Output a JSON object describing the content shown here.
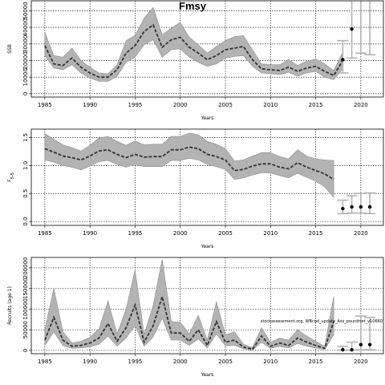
{
  "page_title": "Fmsy",
  "colors": {
    "band": "#b3b3b3",
    "band_edge": "#8c8c8c",
    "line": "#333333",
    "proj": "#b3b3b3",
    "point": "#000000"
  },
  "chart_data": [
    {
      "type": "line",
      "title": "Fmsy",
      "xlabel": "Years",
      "ylabel": "SSB",
      "xlim": [
        1983.5,
        2022.5
      ],
      "ylim": [
        -2000,
        56000
      ],
      "x_ticks": [
        1985,
        1990,
        1995,
        2000,
        2005,
        2010,
        2015,
        2020
      ],
      "y_ticks": [
        0,
        10000,
        20000,
        30000,
        40000,
        50000
      ],
      "grid": true,
      "years": [
        1985,
        1986,
        1987,
        1988,
        1989,
        1990,
        1991,
        1992,
        1993,
        1994,
        1995,
        1996,
        1997,
        1998,
        1999,
        2000,
        2001,
        2002,
        2003,
        2004,
        2005,
        2006,
        2007,
        2008,
        2009,
        2010,
        2011,
        2012,
        2013,
        2014,
        2015,
        2016,
        2017,
        2018
      ],
      "estimate": [
        29000,
        18000,
        17000,
        21500,
        16000,
        12500,
        10000,
        10000,
        14500,
        24500,
        29000,
        37500,
        41500,
        28000,
        32500,
        34000,
        28000,
        24500,
        20500,
        23000,
        26500,
        27500,
        28500,
        20500,
        15000,
        14500,
        14000,
        16000,
        13500,
        15500,
        16500,
        13500,
        11000,
        20000
      ],
      "upper": [
        37000,
        23000,
        22000,
        27500,
        20000,
        16000,
        12500,
        12000,
        17500,
        32000,
        35000,
        45500,
        52000,
        35500,
        39500,
        43000,
        34000,
        29500,
        24500,
        28500,
        32000,
        34500,
        35000,
        26500,
        18000,
        17500,
        17500,
        20500,
        17000,
        19500,
        21000,
        18000,
        14000,
        25000
      ],
      "lower": [
        23000,
        15500,
        14500,
        17500,
        12500,
        9500,
        7500,
        7500,
        10500,
        19000,
        22000,
        29500,
        32500,
        22000,
        26500,
        27000,
        22000,
        19000,
        16500,
        18000,
        21500,
        22500,
        23000,
        16500,
        12500,
        12000,
        11500,
        13000,
        10500,
        12500,
        13500,
        10000,
        8500,
        15000
      ],
      "projection": {
        "years": [
          2018,
          2019,
          2020,
          2021
        ],
        "median": [
          20500,
          39000,
          56000,
          56000
        ],
        "low": [
          12500,
          21500,
          24500,
          23500
        ],
        "high": [
          32000,
          56000,
          56000,
          56000
        ]
      }
    },
    {
      "type": "line",
      "xlabel": "Years",
      "ylabel": "F5-5",
      "xlim": [
        1983.5,
        2022.5
      ],
      "ylim": [
        -0.07,
        1.65
      ],
      "x_ticks": [
        1985,
        1990,
        1995,
        2000,
        2005,
        2010,
        2015,
        2020
      ],
      "y_ticks": [
        0.0,
        0.5,
        1.0,
        1.5
      ],
      "grid": true,
      "years": [
        1985,
        1986,
        1987,
        1988,
        1989,
        1990,
        1991,
        1992,
        1993,
        1994,
        1995,
        1996,
        1997,
        1998,
        1999,
        2000,
        2001,
        2002,
        2003,
        2004,
        2005,
        2006,
        2007,
        2008,
        2009,
        2010,
        2011,
        2012,
        2013,
        2014,
        2015,
        2016,
        2017
      ],
      "estimate": [
        1.3,
        1.24,
        1.17,
        1.14,
        1.1,
        1.17,
        1.26,
        1.28,
        1.2,
        1.14,
        1.2,
        1.15,
        1.16,
        1.16,
        1.28,
        1.28,
        1.33,
        1.3,
        1.2,
        1.16,
        1.1,
        0.91,
        0.93,
        0.99,
        1.03,
        1.03,
        0.97,
        0.94,
        1.05,
        0.97,
        0.91,
        0.85,
        0.75
      ],
      "upper": [
        1.57,
        1.47,
        1.37,
        1.32,
        1.26,
        1.36,
        1.49,
        1.52,
        1.43,
        1.36,
        1.44,
        1.37,
        1.38,
        1.38,
        1.52,
        1.52,
        1.58,
        1.55,
        1.43,
        1.38,
        1.3,
        1.08,
        1.1,
        1.17,
        1.23,
        1.23,
        1.16,
        1.12,
        1.28,
        1.17,
        1.12,
        1.1,
        1.09
      ],
      "lower": [
        1.1,
        1.06,
        1.0,
        0.97,
        0.92,
        0.99,
        1.07,
        1.09,
        1.02,
        0.97,
        1.02,
        0.98,
        0.98,
        0.98,
        1.09,
        1.09,
        1.13,
        1.1,
        1.02,
        0.98,
        0.93,
        0.75,
        0.78,
        0.83,
        0.87,
        0.87,
        0.82,
        0.78,
        0.86,
        0.79,
        0.72,
        0.62,
        0.43
      ],
      "projection": {
        "years": [
          2018,
          2019,
          2020,
          2021
        ],
        "median": [
          0.23,
          0.26,
          0.26,
          0.26
        ],
        "low": [
          0.14,
          0.15,
          0.15,
          0.14
        ],
        "high": [
          0.38,
          0.46,
          0.5,
          0.51
        ]
      }
    },
    {
      "type": "line",
      "xlabel": "Years",
      "ylabel": "Recruits (age 1)",
      "xlim": [
        1983.5,
        2022.5
      ],
      "ylim": [
        -8000,
        225000
      ],
      "x_ticks": [
        1985,
        1990,
        1995,
        2000,
        2005,
        2010,
        2015,
        2020
      ],
      "y_ticks": [
        0,
        50000,
        100000,
        150000,
        200000
      ],
      "grid": true,
      "annotation": "stockassessment.org, WBcod_update_Ass_poundnet_v10660",
      "years": [
        1985,
        1986,
        1987,
        1988,
        1989,
        1990,
        1991,
        1992,
        1993,
        1994,
        1995,
        1996,
        1997,
        1998,
        1999,
        2000,
        2001,
        2002,
        2003,
        2004,
        2005,
        2006,
        2007,
        2008,
        2009,
        2010,
        2011,
        2012,
        2013,
        2014,
        2015,
        2016,
        2017
      ],
      "estimate": [
        25000,
        80000,
        25000,
        10000,
        12000,
        18000,
        30000,
        65000,
        22000,
        55000,
        110000,
        20000,
        60000,
        130000,
        42000,
        42000,
        22000,
        50000,
        12000,
        70000,
        20000,
        25000,
        8000,
        3000,
        35000,
        10000,
        18000,
        12000,
        30000,
        20000,
        12000,
        5000,
        70000
      ],
      "upper": [
        50000,
        150000,
        45000,
        18000,
        22000,
        32000,
        52000,
        120000,
        40000,
        100000,
        195000,
        38000,
        110000,
        220000,
        70000,
        68000,
        40000,
        85000,
        25000,
        118000,
        38000,
        45000,
        15000,
        7000,
        55000,
        20000,
        30000,
        25000,
        50000,
        35000,
        22000,
        10000,
        130000
      ],
      "lower": [
        12000,
        45000,
        12000,
        5000,
        6000,
        9000,
        15000,
        35000,
        10000,
        30000,
        60000,
        10000,
        33000,
        78000,
        25000,
        25000,
        12000,
        28000,
        6000,
        40000,
        11000,
        13000,
        4000,
        1000,
        20000,
        5000,
        10000,
        6000,
        17000,
        10000,
        6000,
        2000,
        38000
      ],
      "projection": {
        "years": [
          2018,
          2019,
          2020,
          2021
        ],
        "median": [
          1500,
          1500,
          14000,
          14000
        ],
        "low": [
          500,
          500,
          1500,
          1500
        ],
        "high": [
          10000,
          20000,
          83000,
          80000
        ]
      }
    }
  ]
}
